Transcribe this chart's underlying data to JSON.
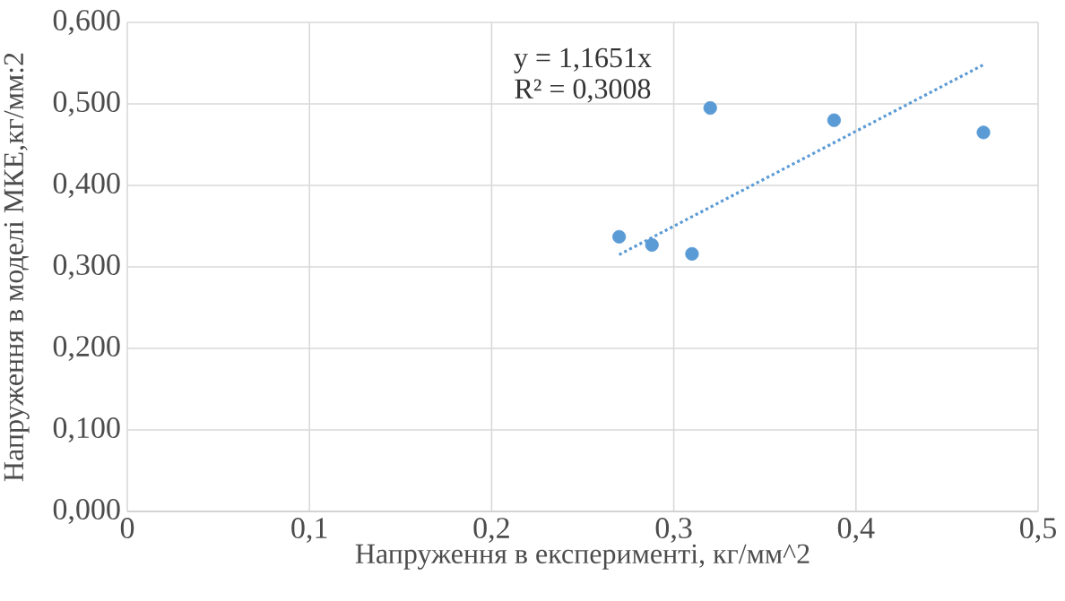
{
  "chart_data": {
    "type": "scatter",
    "xlabel": "Напруження в експерименті, кг/мм^2",
    "ylabel": "Напруження в моделі МКЕ,кг/мм:2",
    "annotations": [
      "y = 1,1651x",
      "R² = 0,3008"
    ],
    "series": [
      {
        "color": "#5b9bd5",
        "marker": "circle",
        "x": [
          0.27,
          0.288,
          0.31,
          0.32,
          0.388,
          0.47
        ],
        "values": [
          0.337,
          0.327,
          0.316,
          0.495,
          0.48,
          0.465
        ]
      },
      {
        "type": "line",
        "color": "#5b9bd5",
        "marker": "none",
        "line_style": "dotted",
        "x": [
          0.27,
          0.47
        ],
        "values": [
          0.315,
          0.548
        ]
      }
    ],
    "xlim": [
      0,
      0.5
    ],
    "ylim": [
      0,
      0.6
    ],
    "xticks": [
      {
        "value": 0,
        "label": "0"
      },
      {
        "value": 0.1,
        "label": "0,1"
      },
      {
        "value": 0.2,
        "label": "0,2"
      },
      {
        "value": 0.3,
        "label": "0,3"
      },
      {
        "value": 0.4,
        "label": "0,4"
      },
      {
        "value": 0.5,
        "label": "0,5"
      }
    ],
    "yticks": [
      {
        "value": 0,
        "label": "0,000"
      },
      {
        "value": 0.1,
        "label": "0,100"
      },
      {
        "value": 0.2,
        "label": "0,200"
      },
      {
        "value": 0.3,
        "label": "0,300"
      },
      {
        "value": 0.4,
        "label": "0,400"
      },
      {
        "value": 0.5,
        "label": "0,500"
      },
      {
        "value": 0.6,
        "label": "0,600"
      }
    ],
    "grid": true
  }
}
